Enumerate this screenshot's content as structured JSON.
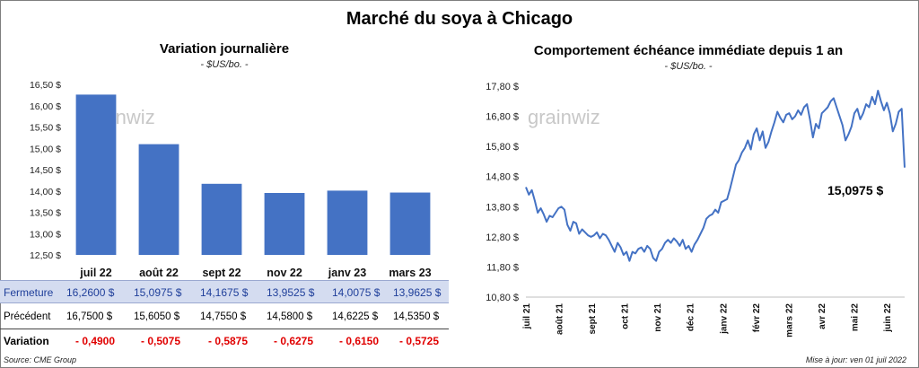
{
  "title": "Marché du soya à Chicago",
  "left_panel": {
    "title": "Variation  journalière",
    "unit": "- $US/bo. -",
    "watermark": "grainwiz"
  },
  "right_panel": {
    "title": "Comportement  échéance immédiate depuis 1 an",
    "unit": "- $US/bo. -",
    "watermark": "grainwiz",
    "last_value_label": "15,0975 $"
  },
  "table": {
    "rows": [
      {
        "label": "Fermeture",
        "values": [
          "16,2600  $",
          "15,0975  $",
          "14,1675  $",
          "13,9525  $",
          "14,0075  $",
          "13,9625  $"
        ]
      },
      {
        "label": "Précédent",
        "values": [
          "16,7500  $",
          "15,6050  $",
          "14,7550  $",
          "14,5800  $",
          "14,6225  $",
          "14,5350  $"
        ]
      },
      {
        "label": "Variation",
        "values": [
          "- 0,4900",
          "- 0,5075",
          "- 0,5875",
          "- 0,6275",
          "- 0,6150",
          "- 0,5725"
        ]
      }
    ]
  },
  "footer": {
    "source": "Source: CME Group",
    "updated": "Mise à jour: ven 01 juil 2022"
  },
  "colors": {
    "bar": "#4472c4",
    "line": "#4472c4",
    "negative": "#e00000",
    "highlight": "#d4dcf0"
  },
  "chart_data": [
    {
      "type": "bar",
      "categories": [
        "juil 22",
        "août 22",
        "sept 22",
        "nov 22",
        "janv 23",
        "mars 23"
      ],
      "values": [
        16.26,
        15.0975,
        14.1675,
        13.9525,
        14.0075,
        13.9625
      ],
      "ylim": [
        12.5,
        16.5
      ],
      "yticks": [
        12.5,
        13.0,
        13.5,
        14.0,
        14.5,
        15.0,
        15.5,
        16.0,
        16.5
      ],
      "ytick_labels": [
        "12,50 $",
        "13,00 $",
        "13,50 $",
        "14,00 $",
        "14,50 $",
        "15,00 $",
        "15,50 $",
        "16,00 $",
        "16,50 $"
      ],
      "grid": false
    },
    {
      "type": "line",
      "x_labels": [
        "juil 21",
        "août 21",
        "sept 21",
        "oct 21",
        "nov 21",
        "déc 21",
        "janv 22",
        "févr 22",
        "mars 22",
        "avr 22",
        "mai 22",
        "juin 22"
      ],
      "ylim": [
        10.8,
        17.8
      ],
      "yticks": [
        10.8,
        11.8,
        12.8,
        13.8,
        14.8,
        15.8,
        16.8,
        17.8
      ],
      "ytick_labels": [
        "10,80 $",
        "11,80 $",
        "12,80 $",
        "13,80 $",
        "14,80 $",
        "15,80 $",
        "16,80 $",
        "17,80 $"
      ],
      "values": [
        14.45,
        14.2,
        14.35,
        14.0,
        13.6,
        13.75,
        13.55,
        13.3,
        13.5,
        13.45,
        13.6,
        13.75,
        13.8,
        13.7,
        13.2,
        13.0,
        13.3,
        13.25,
        12.9,
        13.05,
        12.95,
        12.85,
        12.8,
        12.85,
        12.95,
        12.75,
        12.9,
        12.85,
        12.7,
        12.5,
        12.3,
        12.6,
        12.45,
        12.2,
        12.3,
        12.0,
        12.3,
        12.25,
        12.4,
        12.45,
        12.3,
        12.5,
        12.4,
        12.1,
        12.0,
        12.3,
        12.4,
        12.6,
        12.7,
        12.6,
        12.75,
        12.65,
        12.5,
        12.7,
        12.4,
        12.5,
        12.3,
        12.55,
        12.7,
        12.9,
        13.1,
        13.4,
        13.5,
        13.55,
        13.7,
        13.6,
        13.95,
        14.0,
        14.05,
        14.4,
        14.8,
        15.2,
        15.35,
        15.6,
        15.75,
        16.0,
        15.7,
        16.2,
        16.4,
        16.0,
        16.3,
        15.75,
        15.95,
        16.3,
        16.6,
        16.95,
        16.75,
        16.6,
        16.85,
        16.9,
        16.7,
        16.8,
        17.0,
        16.85,
        17.1,
        17.2,
        16.7,
        16.1,
        16.55,
        16.4,
        16.9,
        17.0,
        17.1,
        17.3,
        17.4,
        17.1,
        16.8,
        16.5,
        16.0,
        16.2,
        16.45,
        16.9,
        17.05,
        16.7,
        16.9,
        17.2,
        17.1,
        17.45,
        17.2,
        17.65,
        17.3,
        17.0,
        17.25,
        16.9,
        16.3,
        16.55,
        16.95,
        17.05,
        15.0975
      ]
    }
  ]
}
